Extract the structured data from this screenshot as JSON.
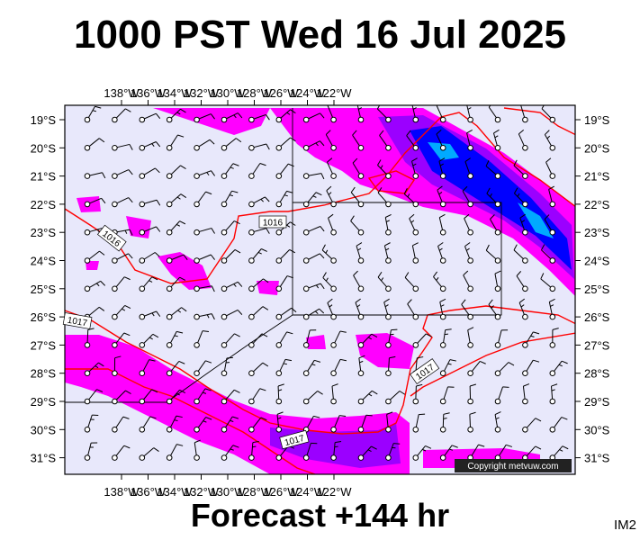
{
  "title": "1000 PST Wed 16 Jul 2025",
  "subtitle": "Forecast +144 hr",
  "image_tag": "IM2",
  "copyright": "Copyright metvuw.com",
  "lon_labels": [
    "138°W",
    "136°W",
    "134°W",
    "132°W",
    "130°W",
    "128°W",
    "126°W",
    "124°W",
    "122°W"
  ],
  "lat_labels": [
    "19°S",
    "20°S",
    "21°S",
    "22°S",
    "23°S",
    "24°S",
    "25°S",
    "26°S",
    "27°S",
    "28°S",
    "29°S",
    "30°S",
    "31°S"
  ],
  "isobar_labels": [
    "1016",
    "1016",
    "1017",
    "1017",
    "1017"
  ],
  "colors": {
    "background": "#e8e8fb",
    "isobar": "#ff0000",
    "rain_light": "#ff00ff",
    "rain_mid": "#9b00ff",
    "rain_heavy": "#0000ff",
    "rain_max": "#00aaff",
    "wind_barb": "#000000"
  },
  "map_type": "mean sea level pressure, wind barbs and precipitation forecast"
}
